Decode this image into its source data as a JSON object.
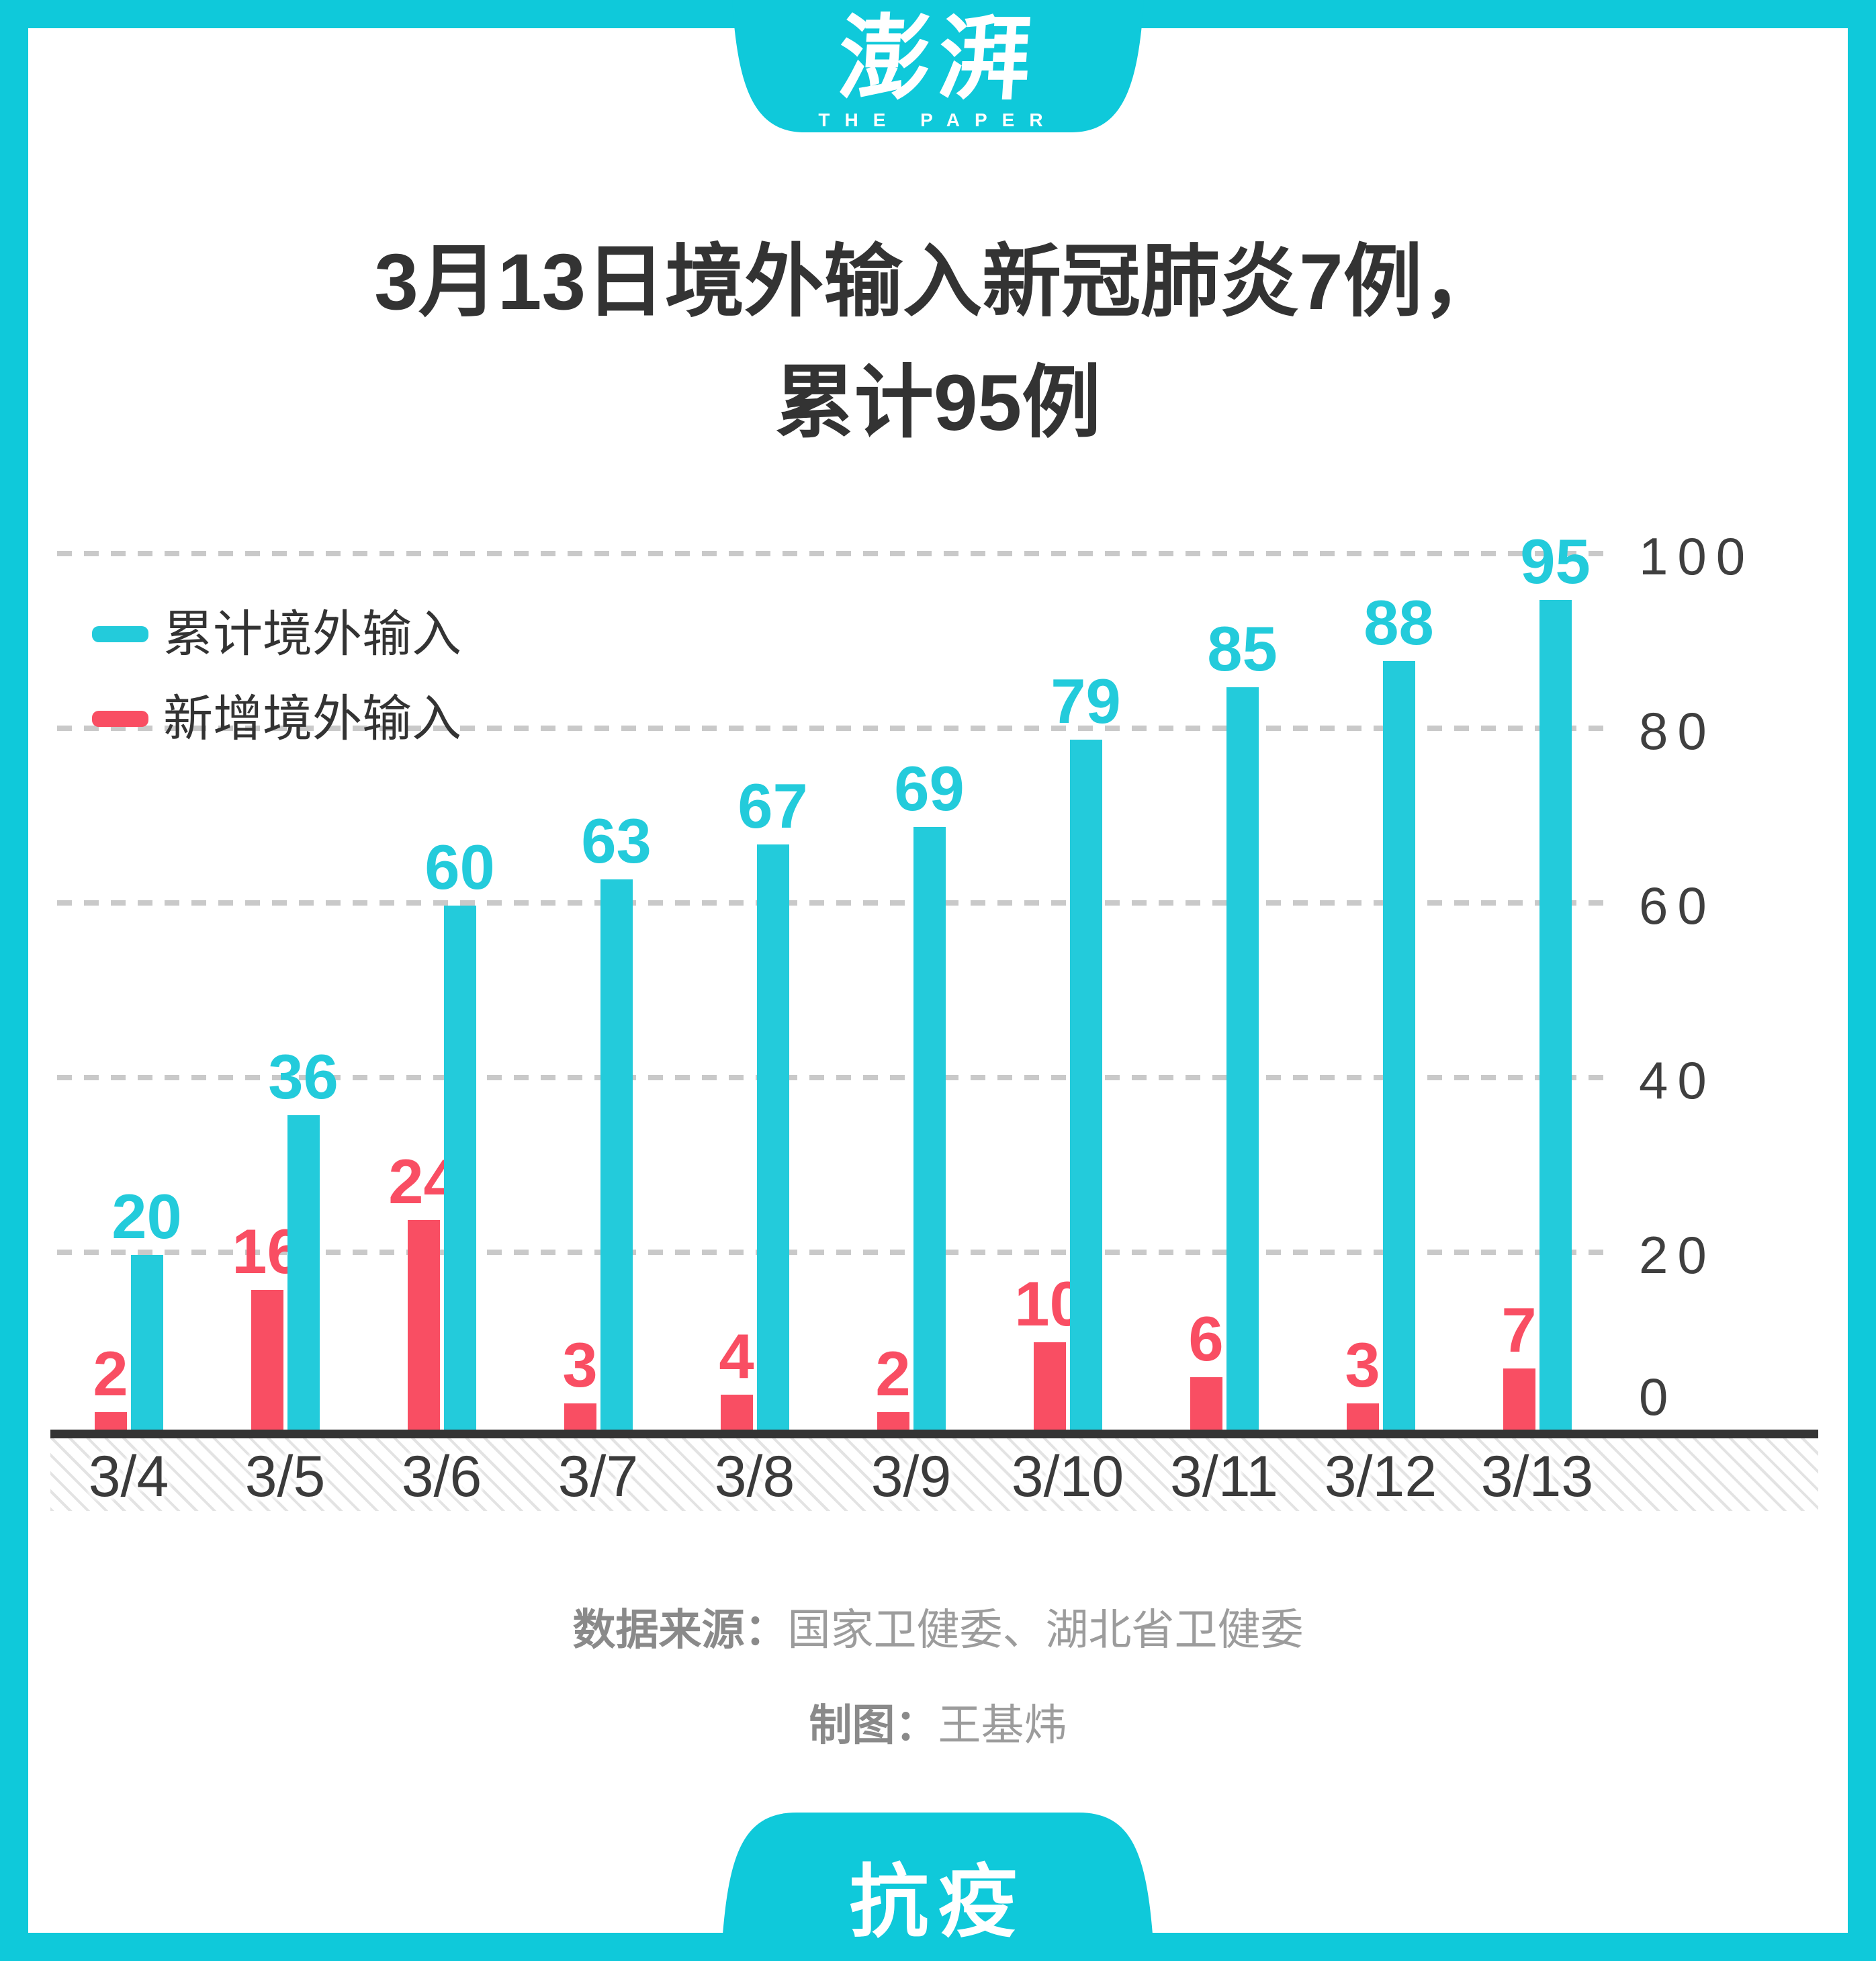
{
  "brand": {
    "logo_cn": "澎湃",
    "logo_en": "THE PAPER",
    "footer_tag": "抗疫"
  },
  "title": {
    "line1": "3月13日境外输入新冠肺炎7例，",
    "line2": "累计95例"
  },
  "legend": [
    {
      "label": "累计境外输入",
      "color": "#23cbdb"
    },
    {
      "label": "新增境外输入",
      "color": "#f94e63"
    }
  ],
  "source": {
    "label_bold": "数据来源：",
    "label_text": "国家卫健委、湖北省卫健委",
    "credit_bold": "制图：",
    "credit_text": "王基炜"
  },
  "colors": {
    "frame_teal": "#0fc9da",
    "bar_teal": "#23cbdb",
    "bar_pink": "#f94e63",
    "grid_gray": "#c9c9c9",
    "axis_dark": "#343434"
  },
  "chart_data": {
    "type": "bar",
    "categories": [
      "3/4",
      "3/5",
      "3/6",
      "3/7",
      "3/8",
      "3/9",
      "3/10",
      "3/11",
      "3/12",
      "3/13"
    ],
    "series": [
      {
        "name": "累计境外输入",
        "color": "#23cbdb",
        "values": [
          20,
          36,
          60,
          63,
          67,
          69,
          79,
          85,
          88,
          95
        ]
      },
      {
        "name": "新增境外输入",
        "color": "#f94e63",
        "values": [
          2,
          16,
          24,
          3,
          4,
          2,
          10,
          6,
          3,
          7
        ]
      }
    ],
    "title": "3月13日境外输入新冠肺炎7例，累计95例",
    "xlabel": "",
    "ylabel": "",
    "ylim": [
      0,
      100
    ],
    "yticks": [
      0,
      20,
      40,
      60,
      80,
      100
    ],
    "grid": "dashed-horizontal",
    "legend_position": "top-left",
    "value_labels": true,
    "y_axis_side": "right"
  }
}
